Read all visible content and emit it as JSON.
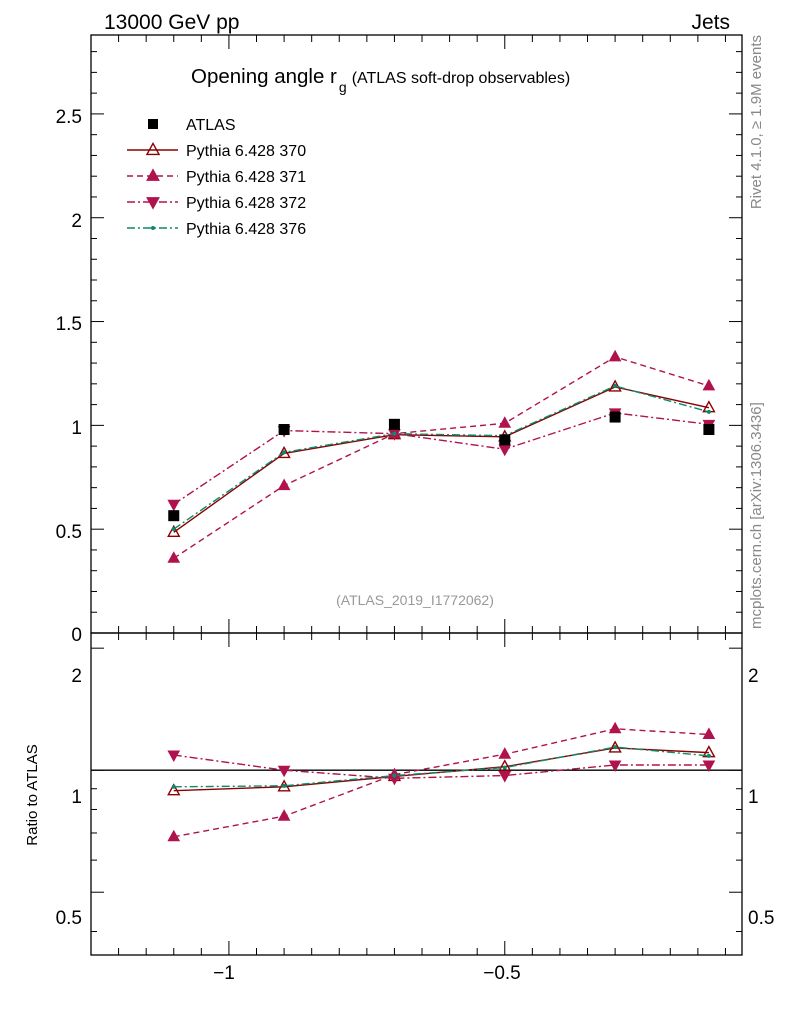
{
  "header": {
    "energy_label": "13000 GeV pp",
    "process_label": "Jets"
  },
  "side_labels": {
    "rivet": "Rivet 4.1.0, ≥ 1.9M events",
    "mcplots": "mcplots.cern.ch [arXiv:1306.3436]"
  },
  "chart_data": [
    {
      "type": "line",
      "panel": "main",
      "title": "Opening angle r",
      "title_subscript": "g",
      "subtitle": "(ATLAS soft-drop observables)",
      "watermark": "(ATLAS_2019_I1772062)",
      "xlim": [
        -1.25,
        -0.07
      ],
      "ylim": [
        0,
        2.88
      ],
      "yticks": [
        0.5,
        1,
        1.5,
        2,
        2.5
      ],
      "ytick_labels": [
        "0.5",
        "1",
        "1.5",
        "2",
        "2.5"
      ],
      "y_zero_label": "0",
      "x": [
        -1.1,
        -0.9,
        -0.7,
        -0.5,
        -0.3,
        -0.13
      ],
      "series": [
        {
          "name": "ATLAS",
          "color": "#000000",
          "marker": "square",
          "dash": "none",
          "values": [
            0.565,
            0.98,
            1.005,
            0.93,
            1.04,
            0.98
          ]
        },
        {
          "name": "Pythia 6.428 370",
          "color": "#8b0000",
          "marker": "triangle-up-open",
          "dash": "solid",
          "values": [
            0.485,
            0.865,
            0.955,
            0.945,
            1.185,
            1.085
          ]
        },
        {
          "name": "Pythia 6.428 371",
          "color": "#b0124d",
          "marker": "triangle-up",
          "dash": "dashed",
          "values": [
            0.36,
            0.71,
            0.96,
            1.01,
            1.33,
            1.19
          ]
        },
        {
          "name": "Pythia 6.428 372",
          "color": "#b0124d",
          "marker": "triangle-down",
          "dash": "dashdot",
          "values": [
            0.62,
            0.975,
            0.96,
            0.885,
            1.06,
            1.005
          ]
        },
        {
          "name": "Pythia 6.428 376",
          "color": "#0b8a6c",
          "marker": "dot",
          "dash": "dashdot",
          "values": [
            0.5,
            0.87,
            0.96,
            0.95,
            1.19,
            1.065
          ]
        }
      ]
    },
    {
      "type": "line",
      "panel": "ratio",
      "ylabel": "Ratio to ATLAS",
      "xlim": [
        -1.25,
        -0.07
      ],
      "ylim": [
        0.35,
        2.18
      ],
      "yticks": [
        0.5,
        1,
        2
      ],
      "ytick_labels": [
        "0.5",
        "1",
        "2"
      ],
      "xticks": [
        -1,
        -0.5
      ],
      "xtick_labels": [
        "−1",
        "−0.5"
      ],
      "reference_line": 1,
      "x": [
        -1.1,
        -0.9,
        -0.7,
        -0.5,
        -0.3,
        -0.13
      ],
      "series": [
        {
          "name": "Pythia 6.428 370",
          "color": "#8b0000",
          "marker": "triangle-up-open",
          "dash": "solid",
          "values": [
            0.89,
            0.91,
            0.965,
            1.02,
            1.135,
            1.105
          ]
        },
        {
          "name": "Pythia 6.428 371",
          "color": "#b0124d",
          "marker": "triangle-up",
          "dash": "dashed",
          "values": [
            0.685,
            0.77,
            0.975,
            1.095,
            1.265,
            1.225
          ]
        },
        {
          "name": "Pythia 6.428 372",
          "color": "#b0124d",
          "marker": "triangle-down",
          "dash": "dashdot",
          "values": [
            1.09,
            1.0,
            0.955,
            0.97,
            1.03,
            1.03
          ]
        },
        {
          "name": "Pythia 6.428 376",
          "color": "#0b8a6c",
          "marker": "dot",
          "dash": "dashdot",
          "values": [
            0.91,
            0.915,
            0.97,
            1.015,
            1.14,
            1.085
          ]
        }
      ]
    }
  ]
}
